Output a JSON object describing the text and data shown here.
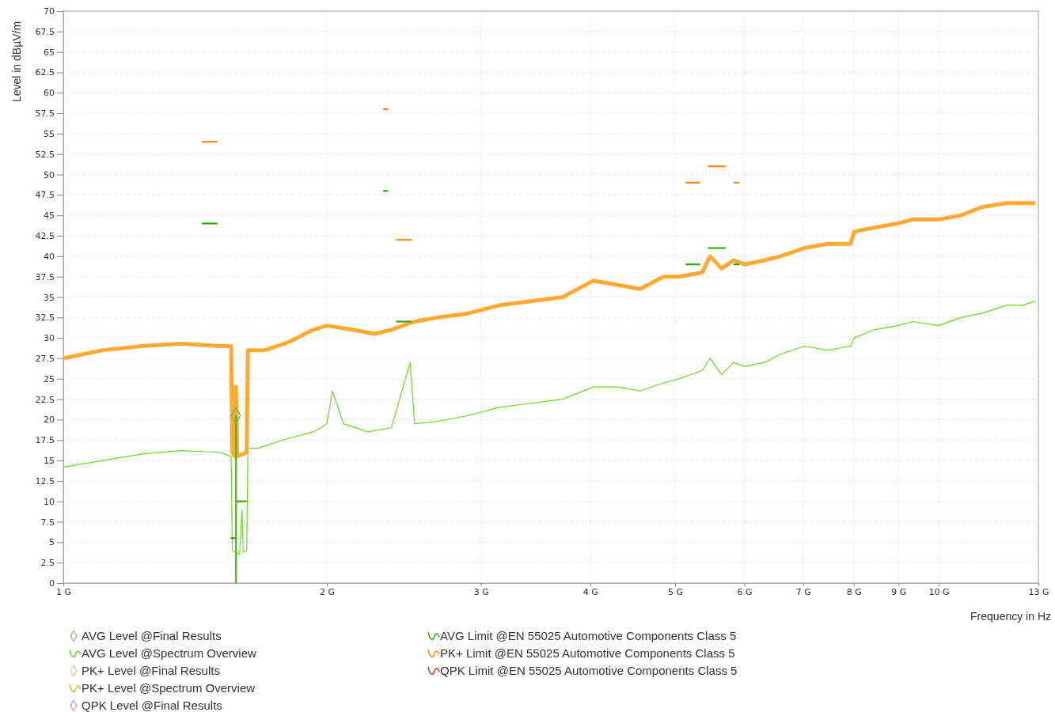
{
  "chart_data": {
    "type": "line",
    "xlabel": "Frequency in Hz",
    "ylabel": "Level in dBµV/m",
    "log": "x",
    "grid": true,
    "legend": "bottom",
    "xlim": [
      1,
      13
    ],
    "xticks": [
      {
        "value": 1,
        "label": "1 G"
      },
      {
        "value": 2,
        "label": "2 G"
      },
      {
        "value": 3,
        "label": "3 G"
      },
      {
        "value": 4,
        "label": "4 G"
      },
      {
        "value": 5,
        "label": "5 G"
      },
      {
        "value": 6,
        "label": "6 G"
      },
      {
        "value": 7,
        "label": "7 G"
      },
      {
        "value": 8,
        "label": "8 G"
      },
      {
        "value": 9,
        "label": "9 G"
      },
      {
        "value": 10,
        "label": "10 G"
      },
      {
        "value": 13,
        "label": "13 G"
      }
    ],
    "ylim": [
      0,
      70
    ],
    "yticks": [
      0,
      2.5,
      5,
      7.5,
      10,
      12.5,
      15,
      17.5,
      20,
      22.5,
      25,
      27.5,
      30,
      32.5,
      35,
      37.5,
      40,
      42.5,
      45,
      47.5,
      50,
      52.5,
      55,
      57.5,
      60,
      62.5,
      65,
      67.5,
      70
    ],
    "series": [
      {
        "name": "AVG Level @Final Results",
        "type": "scatter",
        "marker": "diamond",
        "color": "#55bb44",
        "x": [
          1.575
        ],
        "values": [
          20.5
        ]
      },
      {
        "name": "AVG Level @Spectrum Overview",
        "color": "#66dd22",
        "x": [
          1.0,
          1.11,
          1.23,
          1.36,
          1.51,
          1.555,
          1.56,
          1.59,
          1.6,
          1.605,
          1.62,
          1.625,
          1.67,
          1.78,
          1.93,
          1.97,
          2.0,
          2.03,
          2.09,
          2.23,
          2.37,
          2.49,
          2.52,
          2.68,
          2.9,
          3.15,
          3.42,
          3.72,
          4.03,
          4.29,
          4.56,
          4.85,
          5.05,
          5.37,
          5.48,
          5.65,
          5.83,
          6.0,
          6.33,
          6.6,
          7.02,
          7.46,
          7.93,
          8.01,
          8.44,
          8.97,
          9.35,
          10,
          10.6,
          11.2,
          11.96,
          12.45,
          12.9
        ],
        "values": [
          14.2,
          15,
          15.8,
          16.2,
          16,
          15.5,
          4,
          3.5,
          9,
          3.8,
          4,
          16.5,
          16.5,
          17.5,
          18.5,
          19,
          19.5,
          23.5,
          19.5,
          18.5,
          19,
          27,
          19.5,
          19.8,
          20.5,
          21.5,
          22,
          22.5,
          24,
          24,
          23.5,
          24.5,
          25,
          26,
          27.5,
          25.5,
          27,
          26.5,
          27,
          28,
          29,
          28.5,
          29,
          30,
          31,
          31.5,
          32,
          31.5,
          32.5,
          33,
          34,
          34,
          34.5
        ]
      },
      {
        "name": "PK+ Level @Final Results",
        "type": "scatter",
        "marker": "diamond",
        "color": "#ffaa55"
      },
      {
        "name": "PK+ Level @Spectrum Overview",
        "color": "#ffaa33",
        "x": [
          1.0,
          1.11,
          1.23,
          1.36,
          1.51,
          1.555,
          1.56,
          1.57,
          1.575,
          1.58,
          1.62,
          1.625,
          1.7,
          1.81,
          1.93,
          2.0,
          2.14,
          2.27,
          2.37,
          2.52,
          2.68,
          2.9,
          3.15,
          3.42,
          3.72,
          4.03,
          4.29,
          4.56,
          4.85,
          5.05,
          5.37,
          5.48,
          5.65,
          5.83,
          6.0,
          6.33,
          6.6,
          7.02,
          7.46,
          7.93,
          8.01,
          8.44,
          8.97,
          9.35,
          10,
          10.6,
          11.2,
          11.96,
          12.9
        ],
        "values": [
          27.5,
          28.5,
          29,
          29.3,
          29,
          29,
          16,
          15.5,
          24,
          15.5,
          16,
          28.5,
          28.5,
          29.5,
          31,
          31.5,
          31,
          30.5,
          31,
          32,
          32.5,
          33,
          34,
          34.5,
          35,
          37,
          36.5,
          36,
          37.5,
          37.5,
          38,
          40,
          38.5,
          39.5,
          39,
          39.5,
          40,
          41,
          41.5,
          41.5,
          43,
          43.5,
          44,
          44.5,
          44.5,
          45,
          46,
          46.5,
          46.5
        ]
      },
      {
        "name": "QPK Level @Final Results",
        "type": "scatter",
        "marker": "diamond",
        "color": "#dd7777"
      },
      {
        "name": "AVG Limit @EN 55025 Automotive Components Class 5",
        "color": "#33aa00",
        "x": [
          1.44,
          1.5
        ],
        "values": [
          44,
          44
        ]
      },
      {
        "name": "PK+ Limit @EN 55025 Automotive Components Class 5",
        "color": "#ff8800",
        "x": [
          1.44,
          1.5
        ],
        "values": [
          54,
          54
        ]
      },
      {
        "name": "QPK Limit @EN 55025 Automotive Components Class 5",
        "color": "#cc3333"
      },
      {
        "color": "#33aa00",
        "x": [
          1.553,
          1.572
        ],
        "values": [
          5.5,
          5.5
        ]
      },
      {
        "color": "#33aa00",
        "x": [
          1.575,
          1.62
        ],
        "values": [
          10,
          10
        ]
      },
      {
        "color": "#33aa00",
        "x": [
          2.32,
          2.35
        ],
        "values": [
          48,
          48
        ]
      },
      {
        "color": "#33aa00",
        "x": [
          2.4,
          2.5
        ],
        "values": [
          32,
          32
        ]
      },
      {
        "color": "#33aa00",
        "x": [
          5.14,
          5.34
        ],
        "values": [
          39,
          39
        ]
      },
      {
        "color": "#33aa00",
        "x": [
          5.45,
          5.71
        ],
        "values": [
          41,
          41
        ]
      },
      {
        "color": "#33aa00",
        "x": [
          5.83,
          5.92
        ],
        "values": [
          39,
          39
        ]
      },
      {
        "color": "#ff8800",
        "x": [
          2.32,
          2.35
        ],
        "values": [
          58,
          58
        ]
      },
      {
        "color": "#ff8800",
        "x": [
          2.4,
          2.5
        ],
        "values": [
          42,
          42
        ]
      },
      {
        "color": "#ff8800",
        "x": [
          5.14,
          5.34
        ],
        "values": [
          49,
          49
        ]
      },
      {
        "color": "#ff8800",
        "x": [
          5.45,
          5.71
        ],
        "values": [
          51,
          51
        ]
      },
      {
        "color": "#ff8800",
        "x": [
          5.83,
          5.92
        ],
        "values": [
          49,
          49
        ]
      },
      {
        "color": "#44bb00",
        "x": [
          1.575,
          1.575
        ],
        "values": [
          0,
          20.5
        ]
      }
    ]
  }
}
